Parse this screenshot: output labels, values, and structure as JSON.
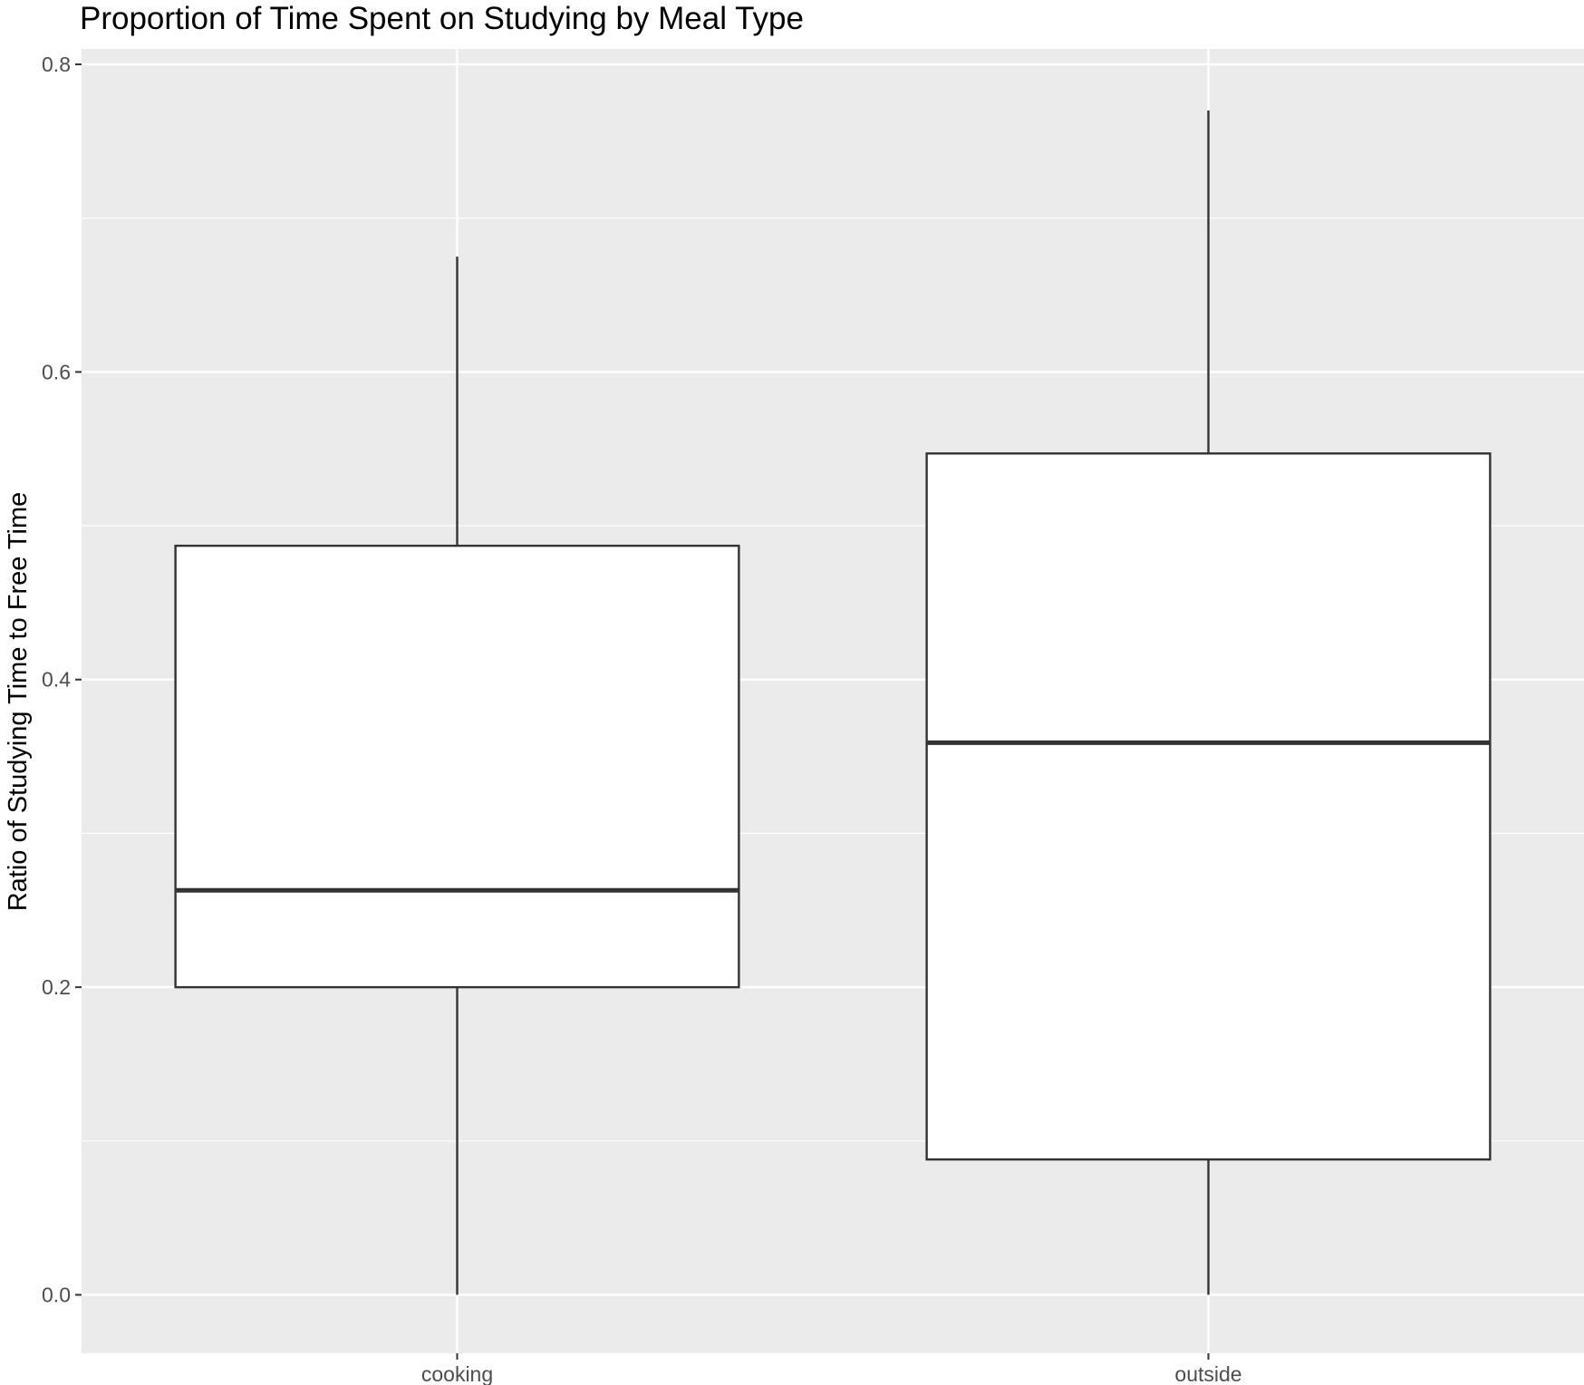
{
  "chart_data": {
    "type": "boxplot",
    "title": "Proportion of Time Spent on Studying by Meal Type",
    "xlabel": "",
    "ylabel": "Ratio of Studying Time to Free Time",
    "categories": [
      "cooking",
      "outside"
    ],
    "boxes": [
      {
        "category": "cooking",
        "whisker_low": 0.0,
        "q1": 0.2,
        "median": 0.263,
        "q3": 0.487,
        "whisker_high": 0.675
      },
      {
        "category": "outside",
        "whisker_low": 0.0,
        "q1": 0.088,
        "median": 0.359,
        "q3": 0.547,
        "whisker_high": 0.77
      }
    ],
    "ylim": [
      -0.038,
      0.81
    ],
    "yticks": [
      0.0,
      0.2,
      0.4,
      0.6,
      0.8
    ],
    "ytick_labels": [
      "0.0",
      "0.2",
      "0.4",
      "0.6",
      "0.8"
    ],
    "grid": true,
    "legend": "none",
    "colors": {
      "panel_background": "#ebebeb",
      "grid": "#ffffff",
      "box_fill": "#ffffff",
      "box_stroke": "#333333",
      "tick_text": "#4d4d4d",
      "tick_mark": "#333333"
    }
  }
}
